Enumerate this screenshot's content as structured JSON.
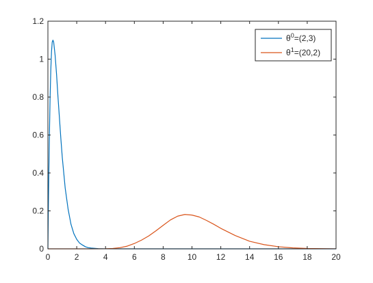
{
  "chart_data": {
    "type": "line",
    "title": "",
    "xlabel": "",
    "ylabel": "",
    "xlim": [
      0,
      20
    ],
    "ylim": [
      0,
      1.2
    ],
    "x_ticks": [
      0,
      2,
      4,
      6,
      8,
      10,
      12,
      14,
      16,
      18,
      20
    ],
    "y_ticks": [
      0,
      0.2,
      0.4,
      0.6,
      0.8,
      1,
      1.2
    ],
    "x_tick_labels": [
      "0",
      "2",
      "4",
      "6",
      "8",
      "10",
      "12",
      "14",
      "16",
      "18",
      "20"
    ],
    "y_tick_labels": [
      "0",
      "0.2",
      "0.4",
      "0.6",
      "0.8",
      "1",
      "1.2"
    ],
    "grid": false,
    "legend_position": "top-right",
    "series": [
      {
        "name_base": "θ",
        "name_superscript": "0",
        "name_suffix": "=(2,3)",
        "color": "#0072BD",
        "x": [
          0,
          0.02,
          0.05,
          0.1,
          0.15,
          0.2,
          0.25,
          0.3,
          0.35,
          0.4,
          0.5,
          0.6,
          0.7,
          0.8,
          0.9,
          1.0,
          1.2,
          1.4,
          1.6,
          1.8,
          2.0,
          2.2,
          2.4,
          2.6,
          2.8,
          3.0,
          3.5,
          4.0,
          5.0,
          8.0,
          12.0,
          16.0,
          20.0
        ],
        "y": [
          0,
          0.14,
          0.32,
          0.58,
          0.79,
          0.94,
          1.04,
          1.09,
          1.1,
          1.09,
          1.02,
          0.92,
          0.8,
          0.69,
          0.58,
          0.48,
          0.32,
          0.21,
          0.13,
          0.08,
          0.05,
          0.03,
          0.02,
          0.011,
          0.006,
          0.004,
          0.001,
          0.0003,
          0,
          0,
          0,
          0,
          0
        ]
      },
      {
        "name_base": "θ",
        "name_superscript": "1",
        "name_suffix": "=(20,2)",
        "color": "#D95319",
        "x": [
          0,
          2,
          3,
          4,
          4.5,
          5,
          5.5,
          6,
          6.5,
          7,
          7.5,
          8,
          8.5,
          9,
          9.5,
          10,
          10.5,
          11,
          11.5,
          12,
          13,
          14,
          15,
          16,
          17,
          18,
          19,
          20
        ],
        "y": [
          0,
          0,
          0,
          0.0005,
          0.002,
          0.006,
          0.014,
          0.028,
          0.046,
          0.068,
          0.095,
          0.124,
          0.152,
          0.172,
          0.181,
          0.178,
          0.168,
          0.15,
          0.13,
          0.108,
          0.07,
          0.04,
          0.022,
          0.011,
          0.005,
          0.002,
          0.0008,
          0.0003
        ]
      }
    ]
  }
}
